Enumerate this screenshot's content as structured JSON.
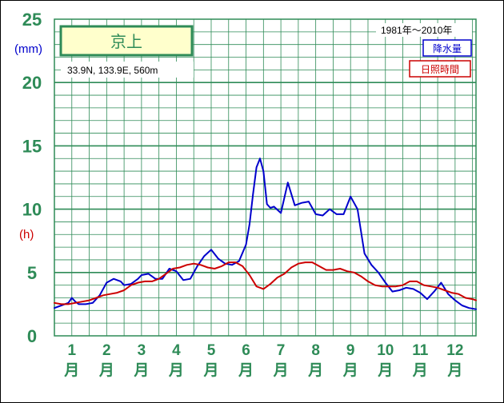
{
  "chart_data": {
    "type": "line",
    "station": "京上",
    "location": "33.9N,  133.9E,  560m",
    "period": "1981年〜2010年",
    "legend": [
      "降水量",
      "日照時間"
    ],
    "y_unit_primary": "(mm)",
    "y_unit_secondary": "(h)",
    "y_ticks": [
      "0",
      "5",
      "10",
      "15",
      "20",
      "25"
    ],
    "ylim": [
      0,
      25
    ],
    "x_month_numbers": [
      "1",
      "2",
      "3",
      "4",
      "5",
      "6",
      "7",
      "8",
      "9",
      "10",
      "11",
      "12"
    ],
    "x_month_suffix": "月",
    "xlim": [
      0.5,
      12.6
    ],
    "grid": true,
    "series": [
      {
        "name": "降水量",
        "color": "#0000cc",
        "x": [
          0.5,
          0.7,
          0.9,
          1.0,
          1.1,
          1.2,
          1.4,
          1.6,
          1.8,
          2.0,
          2.2,
          2.4,
          2.5,
          2.7,
          2.9,
          3.0,
          3.2,
          3.4,
          3.6,
          3.8,
          4.0,
          4.2,
          4.4,
          4.6,
          4.8,
          5.0,
          5.2,
          5.4,
          5.6,
          5.8,
          6.0,
          6.1,
          6.2,
          6.3,
          6.4,
          6.5,
          6.6,
          6.7,
          6.8,
          7.0,
          7.2,
          7.4,
          7.6,
          7.8,
          8.0,
          8.2,
          8.4,
          8.6,
          8.8,
          9.0,
          9.2,
          9.4,
          9.6,
          9.8,
          10.0,
          10.2,
          10.4,
          10.6,
          10.8,
          11.0,
          11.2,
          11.4,
          11.6,
          11.8,
          12.0,
          12.2,
          12.4,
          12.6
        ],
        "values": [
          2.2,
          2.4,
          2.6,
          3.0,
          2.7,
          2.5,
          2.5,
          2.6,
          3.2,
          4.2,
          4.5,
          4.3,
          4.0,
          4.1,
          4.5,
          4.8,
          4.9,
          4.5,
          4.5,
          5.3,
          5.1,
          4.4,
          4.5,
          5.5,
          6.3,
          6.8,
          6.1,
          5.7,
          5.6,
          5.9,
          7.2,
          8.8,
          11.2,
          13.3,
          14.0,
          13.0,
          10.4,
          10.1,
          10.2,
          9.7,
          12.1,
          10.3,
          10.5,
          10.6,
          9.6,
          9.5,
          10.0,
          9.6,
          9.6,
          11.0,
          10.0,
          6.5,
          5.6,
          5.0,
          4.2,
          3.5,
          3.6,
          3.8,
          3.7,
          3.4,
          2.9,
          3.5,
          4.2,
          3.3,
          2.8,
          2.4,
          2.2,
          2.1
        ]
      },
      {
        "name": "日照時間",
        "color": "#cc0000",
        "x": [
          0.5,
          0.7,
          0.9,
          1.1,
          1.3,
          1.5,
          1.7,
          1.9,
          2.1,
          2.3,
          2.5,
          2.7,
          2.9,
          3.1,
          3.3,
          3.5,
          3.7,
          3.9,
          4.1,
          4.3,
          4.5,
          4.7,
          4.9,
          5.1,
          5.3,
          5.5,
          5.7,
          5.9,
          6.1,
          6.3,
          6.5,
          6.7,
          6.9,
          7.1,
          7.3,
          7.5,
          7.7,
          7.9,
          8.1,
          8.3,
          8.5,
          8.7,
          8.9,
          9.1,
          9.3,
          9.5,
          9.7,
          9.9,
          10.1,
          10.3,
          10.5,
          10.7,
          10.9,
          11.1,
          11.3,
          11.5,
          11.7,
          11.9,
          12.1,
          12.3,
          12.5,
          12.6
        ],
        "values": [
          2.6,
          2.5,
          2.5,
          2.6,
          2.7,
          2.8,
          3.0,
          3.2,
          3.3,
          3.4,
          3.6,
          4.0,
          4.2,
          4.3,
          4.3,
          4.5,
          4.9,
          5.3,
          5.4,
          5.6,
          5.7,
          5.6,
          5.4,
          5.3,
          5.5,
          5.8,
          5.8,
          5.5,
          4.8,
          3.9,
          3.7,
          4.1,
          4.6,
          4.9,
          5.4,
          5.7,
          5.8,
          5.8,
          5.5,
          5.2,
          5.2,
          5.3,
          5.1,
          5.0,
          4.7,
          4.3,
          4.0,
          3.9,
          3.9,
          3.9,
          4.0,
          4.3,
          4.3,
          4.0,
          3.9,
          3.8,
          3.6,
          3.4,
          3.3,
          3.0,
          2.9,
          2.8
        ]
      }
    ]
  }
}
